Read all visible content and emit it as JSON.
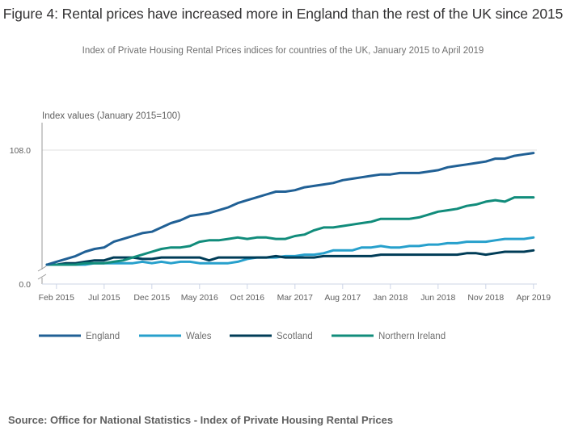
{
  "title": "Figure 4: Rental prices have increased more in England than the rest of the UK since 2015",
  "subtitle": "Index of Private Housing Rental Prices indices for countries of the UK, January 2015 to April 2019",
  "source": "Source: Office for National Statistics - Index of Private Housing Rental Prices",
  "chart_data": {
    "type": "line",
    "title": "Figure 4: Rental prices have increased more in England than the rest of the UK since 2015",
    "subtitle": "Index of Private Housing Rental Prices indices for countries of the UK, January 2015 to April 2019",
    "ylabel": "Index values (January 2015=100)",
    "xlabel": "",
    "y_tick_labels": [
      "0.0",
      "108.0"
    ],
    "y_axis_break": true,
    "ylim": [
      100,
      108
    ],
    "grid": true,
    "legend_position": "bottom-left",
    "x_tick_labels": [
      "Feb 2015",
      "Jul 2015",
      "Dec 2015",
      "May 2016",
      "Oct 2016",
      "Mar 2017",
      "Aug 2017",
      "Jan 2018",
      "Jun 2018",
      "Nov 2018",
      "Apr 2019"
    ],
    "x": [
      "Jan 2015",
      "Feb 2015",
      "Mar 2015",
      "Apr 2015",
      "May 2015",
      "Jun 2015",
      "Jul 2015",
      "Aug 2015",
      "Sep 2015",
      "Oct 2015",
      "Nov 2015",
      "Dec 2015",
      "Jan 2016",
      "Feb 2016",
      "Mar 2016",
      "Apr 2016",
      "May 2016",
      "Jun 2016",
      "Jul 2016",
      "Aug 2016",
      "Sep 2016",
      "Oct 2016",
      "Nov 2016",
      "Dec 2016",
      "Jan 2017",
      "Feb 2017",
      "Mar 2017",
      "Apr 2017",
      "May 2017",
      "Jun 2017",
      "Jul 2017",
      "Aug 2017",
      "Sep 2017",
      "Oct 2017",
      "Nov 2017",
      "Dec 2017",
      "Jan 2018",
      "Feb 2018",
      "Mar 2018",
      "Apr 2018",
      "May 2018",
      "Jun 2018",
      "Jul 2018",
      "Aug 2018",
      "Sep 2018",
      "Oct 2018",
      "Nov 2018",
      "Dec 2018",
      "Jan 2019",
      "Feb 2019",
      "Mar 2019",
      "Apr 2019"
    ],
    "series": [
      {
        "name": "England",
        "color": "#206095",
        "values": [
          100.0,
          100.2,
          100.4,
          100.6,
          100.9,
          101.1,
          101.2,
          101.6,
          101.8,
          102.0,
          102.2,
          102.3,
          102.6,
          102.9,
          103.1,
          103.4,
          103.5,
          103.6,
          103.8,
          104.0,
          104.3,
          104.5,
          104.7,
          104.9,
          105.1,
          105.1,
          105.2,
          105.4,
          105.5,
          105.6,
          105.7,
          105.9,
          106.0,
          106.1,
          106.2,
          106.3,
          106.3,
          106.4,
          106.4,
          106.4,
          106.5,
          106.6,
          106.8,
          106.9,
          107.0,
          107.1,
          107.2,
          107.4,
          107.4,
          107.6,
          107.7,
          107.8
        ]
      },
      {
        "name": "Wales",
        "color": "#27a0cc",
        "values": [
          100.0,
          100.0,
          100.0,
          100.0,
          100.0,
          100.1,
          100.1,
          100.1,
          100.1,
          100.1,
          100.2,
          100.1,
          100.2,
          100.1,
          100.2,
          100.2,
          100.1,
          100.1,
          100.1,
          100.1,
          100.2,
          100.4,
          100.5,
          100.5,
          100.5,
          100.6,
          100.6,
          100.7,
          100.7,
          100.8,
          101.0,
          101.0,
          101.0,
          101.2,
          101.2,
          101.3,
          101.2,
          101.2,
          101.3,
          101.3,
          101.4,
          101.4,
          101.5,
          101.5,
          101.6,
          101.6,
          101.6,
          101.7,
          101.8,
          101.8,
          101.8,
          101.9
        ]
      },
      {
        "name": "Scotland",
        "color": "#003c57",
        "values": [
          100.0,
          100.0,
          100.1,
          100.1,
          100.2,
          100.3,
          100.3,
          100.5,
          100.5,
          100.5,
          100.4,
          100.4,
          100.5,
          100.5,
          100.5,
          100.5,
          100.5,
          100.3,
          100.5,
          100.5,
          100.5,
          100.5,
          100.5,
          100.5,
          100.6,
          100.5,
          100.5,
          100.5,
          100.5,
          100.6,
          100.6,
          100.6,
          100.6,
          100.6,
          100.6,
          100.7,
          100.7,
          100.7,
          100.7,
          100.7,
          100.7,
          100.7,
          100.7,
          100.7,
          100.8,
          100.8,
          100.7,
          100.8,
          100.9,
          100.9,
          100.9,
          101.0
        ]
      },
      {
        "name": "Northern Ireland",
        "color": "#118c7b",
        "values": [
          100.0,
          100.0,
          100.0,
          100.0,
          100.1,
          100.1,
          100.1,
          100.2,
          100.3,
          100.5,
          100.7,
          100.9,
          101.1,
          101.2,
          101.2,
          101.3,
          101.6,
          101.7,
          101.7,
          101.8,
          101.9,
          101.8,
          101.9,
          101.9,
          101.8,
          101.8,
          102.0,
          102.1,
          102.4,
          102.6,
          102.6,
          102.7,
          102.8,
          102.9,
          103.0,
          103.2,
          103.2,
          103.2,
          103.2,
          103.3,
          103.5,
          103.7,
          103.8,
          103.9,
          104.1,
          104.2,
          104.4,
          104.5,
          104.4,
          104.7,
          104.7,
          104.7
        ]
      }
    ]
  }
}
